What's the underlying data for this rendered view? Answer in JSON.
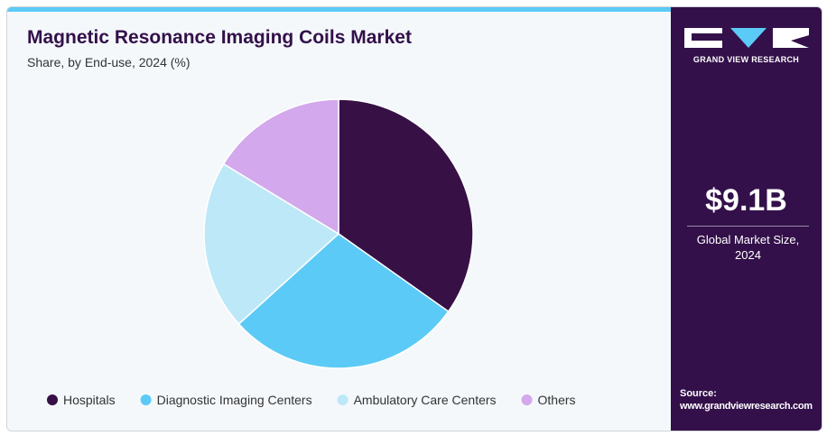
{
  "chart_data": {
    "type": "pie",
    "title": "Magnetic Resonance Imaging Coils Market",
    "subtitle": "Share, by End-use, 2024 (%)",
    "categories": [
      "Hospitals",
      "Diagnostic Imaging Centers",
      "Ambulatory Care Centers",
      "Others"
    ],
    "values": [
      34.8,
      28.5,
      20.4,
      16.3
    ],
    "colors": [
      "#371046",
      "#5ccaf6",
      "#bde8f8",
      "#d3a8ec"
    ],
    "legend": "bottom"
  },
  "sidebar": {
    "brand": "GRAND VIEW RESEARCH",
    "market_size": "$9.1B",
    "market_label": "Global Market Size, 2024",
    "source_label": "Source:",
    "source": "www.grandviewresearch.com"
  }
}
